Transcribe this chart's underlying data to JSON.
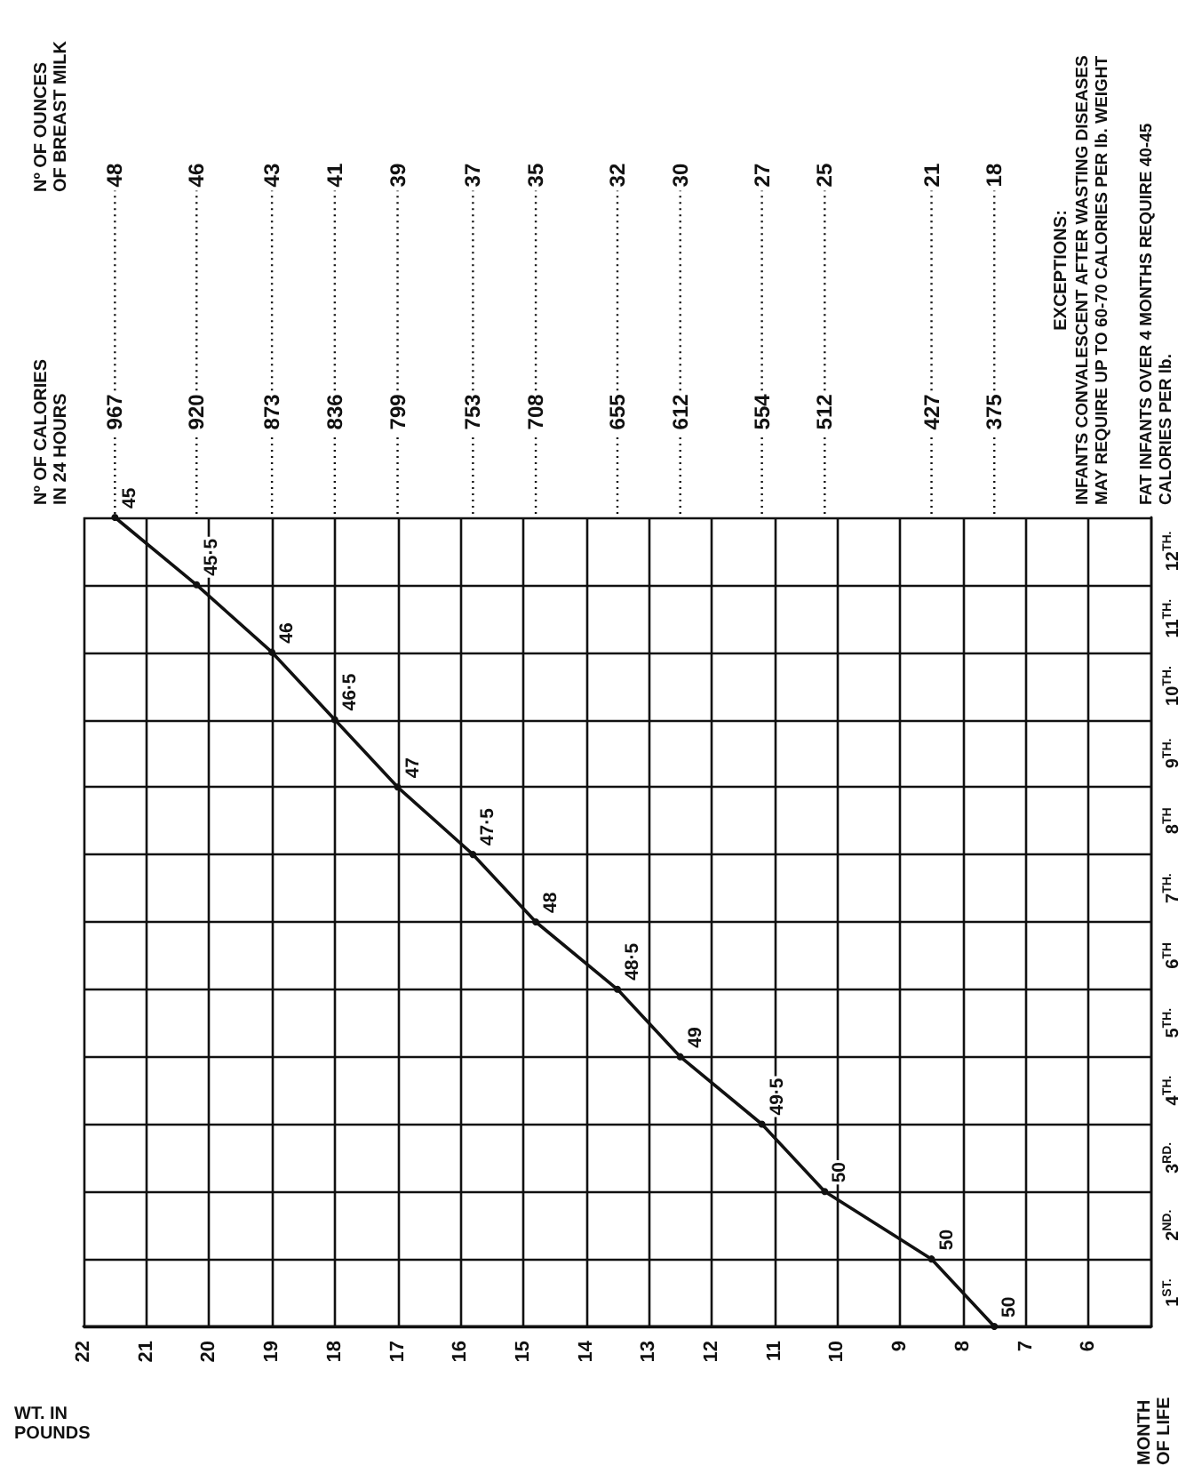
{
  "chart_data": {
    "type": "line",
    "x": [
      7.5,
      8.5,
      10.2,
      11.2,
      12.5,
      13.5,
      14.8,
      15.8,
      17,
      18,
      19,
      20.2,
      21.5
    ],
    "series": [
      {
        "color": "#111111",
        "values": [
          0,
          1,
          2,
          3,
          4,
          5,
          6,
          7,
          8,
          9,
          10,
          11,
          12
        ]
      }
    ],
    "xlabel": "WT. IN\nPOUNDS",
    "ylabel": "MONTH\nOF LIFE",
    "xlim": [
      22,
      5
    ],
    "xticks": [
      22,
      21,
      20,
      19,
      18,
      17,
      16,
      15,
      14,
      13,
      12,
      11,
      10,
      9,
      8,
      7,
      6
    ],
    "ylim": [
      0,
      12
    ],
    "yticks": [
      {
        "value": 0,
        "label": null
      },
      {
        "value": 0.5,
        "label": "1$^{ST.}$"
      },
      {
        "value": 1,
        "label": null
      },
      {
        "value": 1.5,
        "label": "2$^{ND.}$"
      },
      {
        "value": 2,
        "label": null
      },
      {
        "value": 2.5,
        "label": "3$^{RD.}$"
      },
      {
        "value": 3,
        "label": null
      },
      {
        "value": 3.5,
        "label": "4$^{TH.}$"
      },
      {
        "value": 4,
        "label": null
      },
      {
        "value": 4.5,
        "label": "5$^{TH.}$"
      },
      {
        "value": 5,
        "label": null
      },
      {
        "value": 5.5,
        "label": "6$^{TH}$"
      },
      {
        "value": 6,
        "label": null
      },
      {
        "value": 6.5,
        "label": "7$^{TH.}$"
      },
      {
        "value": 7,
        "label": null
      },
      {
        "value": 7.5,
        "label": "8$^{TH}$"
      },
      {
        "value": 8,
        "label": null
      },
      {
        "value": 8.5,
        "label": "9$^{TH.}$"
      },
      {
        "value": 9,
        "label": null
      },
      {
        "value": 9.5,
        "label": "10$^{TH.}$"
      },
      {
        "value": 10,
        "label": null
      },
      {
        "value": 10.5,
        "label": "11$^{TH.}$"
      },
      {
        "value": 11,
        "label": null
      },
      {
        "value": 11.5,
        "label": "12$^{TH.}$"
      },
      {
        "value": 12,
        "label": null
      }
    ],
    "annotations": [
      {
        "text": "50",
        "x": 7.5,
        "y": 0
      },
      {
        "text": "50",
        "x": 8.5,
        "y": 1
      },
      {
        "text": "50",
        "x": 10.2,
        "y": 2
      },
      {
        "text": "49·5",
        "x": 11.2,
        "y": 3
      },
      {
        "text": "49",
        "x": 12.5,
        "y": 4
      },
      {
        "text": "48·5",
        "x": 13.5,
        "y": 5
      },
      {
        "text": "48",
        "x": 14.8,
        "y": 6
      },
      {
        "text": "47·5",
        "x": 15.8,
        "y": 7
      },
      {
        "text": "47",
        "x": 17,
        "y": 8
      },
      {
        "text": "46·5",
        "x": 18,
        "y": 9
      },
      {
        "text": "46",
        "x": 19,
        "y": 10
      },
      {
        "text": "45·5",
        "x": 20.2,
        "y": 11
      },
      {
        "text": "45",
        "x": 21.5,
        "y": 12
      },
      "Nº OF CALORIES\nIN 24 HOURS",
      "375",
      "427",
      "512",
      "554",
      "612",
      "655",
      "708",
      "753",
      "799",
      "836",
      "873",
      "920",
      "967",
      "Nº OF OUNCES\nOF BREAST MILK",
      "18",
      "21",
      "25",
      "27",
      "30",
      "32",
      "35",
      "37",
      "39",
      "41",
      "43",
      "46",
      "48",
      "EXCEPTIONS:",
      "INFANTS CONVALESCENT AFTER WASTING DISEASES MAY REQUIRE UP TO 60-70 CALORIES PER lb. WEIGHT",
      "FAT INFANTS OVER 4 MONTHS REQUIRE 40-45 CALORIES PER lb."
    ],
    "grid": true,
    "marker": "circle",
    "line_style": "solid"
  }
}
